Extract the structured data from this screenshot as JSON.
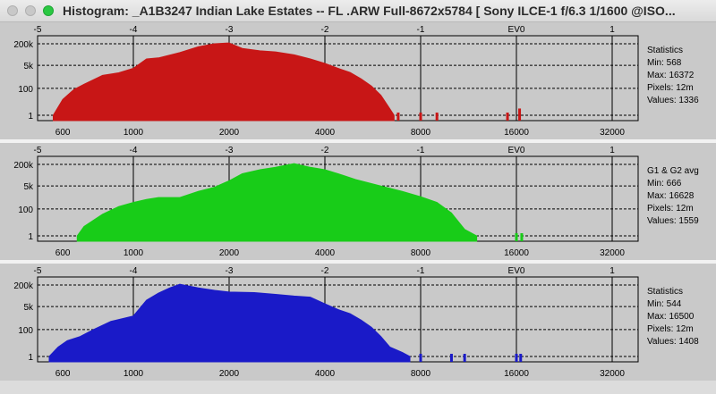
{
  "window": {
    "title": "Histogram: _A1B3247 Indian Lake Estates -- FL .ARW Full-8672x5784 [ Sony ILCE-1 f/6.3 1/1600 @ISO..."
  },
  "colors": {
    "red": "#c81616",
    "green": "#18cc18",
    "blue": "#1a1ac8",
    "plot_bg": "#c9c9c9"
  },
  "panels": [
    {
      "name": "red-channel",
      "stats": {
        "heading": "Statistics",
        "min": "Min: 568",
        "max": "Max: 16372",
        "pixels": "Pixels: 12m",
        "values": "Values: 1336"
      }
    },
    {
      "name": "green-channel",
      "stats": {
        "heading": "G1 & G2 avg",
        "min": "Min: 666",
        "max": "Max: 16628",
        "pixels": "Pixels: 12m",
        "values": "Values: 1559"
      }
    },
    {
      "name": "blue-channel",
      "stats": {
        "heading": "Statistics",
        "min": "Min: 544",
        "max": "Max: 16500",
        "pixels": "Pixels: 12m",
        "values": "Values: 1408"
      }
    }
  ],
  "chart_data": [
    {
      "type": "area",
      "channel": "red",
      "x_scale": "log2",
      "top_axis_ticks": [
        "-5",
        "-4",
        "-3",
        "-2",
        "-1",
        "EV0",
        "1"
      ],
      "bottom_axis_ticks": [
        "600",
        "1000",
        "2000",
        "4000",
        "8000",
        "16000",
        "32000"
      ],
      "y_axis_ticks": [
        "200k",
        "5k",
        "100",
        "1"
      ],
      "x": [
        560,
        600,
        650,
        700,
        800,
        900,
        1000,
        1100,
        1200,
        1400,
        1600,
        1800,
        2000,
        2200,
        2500,
        2800,
        3200,
        3600,
        4000,
        4400,
        4800,
        5200,
        5600,
        6000,
        6400,
        6600
      ],
      "y": [
        1,
        15,
        80,
        200,
        900,
        1400,
        3000,
        15000,
        18000,
        45000,
        120000,
        200000,
        230000,
        90000,
        60000,
        50000,
        30000,
        15000,
        7000,
        3000,
        1500,
        500,
        150,
        30,
        3,
        1
      ],
      "isolated_peaks": [
        {
          "x": 6800,
          "y": 1
        },
        {
          "x": 8000,
          "y": 1
        },
        {
          "x": 9000,
          "y": 1
        },
        {
          "x": 15000,
          "y": 1
        },
        {
          "x": 16372,
          "y": 2
        }
      ]
    },
    {
      "type": "area",
      "channel": "green",
      "x_scale": "log2",
      "top_axis_ticks": [
        "-5",
        "-4",
        "-3",
        "-2",
        "-1",
        "EV0",
        "1"
      ],
      "bottom_axis_ticks": [
        "600",
        "1000",
        "2000",
        "4000",
        "8000",
        "16000",
        "32000"
      ],
      "y_axis_ticks": [
        "200k",
        "5k",
        "100",
        "1"
      ],
      "x": [
        666,
        700,
        800,
        900,
        1000,
        1100,
        1200,
        1400,
        1600,
        1800,
        2000,
        2200,
        2500,
        2800,
        3200,
        3600,
        4000,
        4400,
        5000,
        6000,
        7000,
        8000,
        9000,
        10000,
        11000,
        12000
      ],
      "y": [
        1,
        5,
        40,
        150,
        300,
        500,
        700,
        700,
        2000,
        4000,
        12000,
        40000,
        80000,
        120000,
        230000,
        120000,
        80000,
        40000,
        15000,
        5000,
        2000,
        800,
        300,
        50,
        3,
        1
      ],
      "isolated_peaks": [
        {
          "x": 16000,
          "y": 1
        },
        {
          "x": 16628,
          "y": 1
        }
      ]
    },
    {
      "type": "area",
      "channel": "blue",
      "x_scale": "log2",
      "top_axis_ticks": [
        "-5",
        "-4",
        "-3",
        "-2",
        "-1",
        "EV0",
        "1"
      ],
      "bottom_axis_ticks": [
        "600",
        "1000",
        "2000",
        "4000",
        "8000",
        "16000",
        "32000"
      ],
      "y_axis_ticks": [
        "200k",
        "5k",
        "100",
        "1"
      ],
      "x": [
        544,
        580,
        620,
        680,
        750,
        850,
        1000,
        1100,
        1200,
        1300,
        1400,
        1600,
        1800,
        2000,
        2400,
        2800,
        3200,
        3600,
        4000,
        4400,
        4800,
        5200,
        5600,
        6000,
        6400,
        7000,
        7400
      ],
      "y": [
        1,
        5,
        15,
        30,
        100,
        400,
        1000,
        15000,
        50000,
        120000,
        230000,
        120000,
        80000,
        60000,
        55000,
        40000,
        30000,
        25000,
        8000,
        3000,
        1500,
        500,
        150,
        30,
        5,
        2,
        1
      ],
      "isolated_peaks": [
        {
          "x": 8000,
          "y": 1
        },
        {
          "x": 10000,
          "y": 1
        },
        {
          "x": 11000,
          "y": 1
        },
        {
          "x": 16000,
          "y": 1
        },
        {
          "x": 16500,
          "y": 1
        }
      ]
    }
  ]
}
